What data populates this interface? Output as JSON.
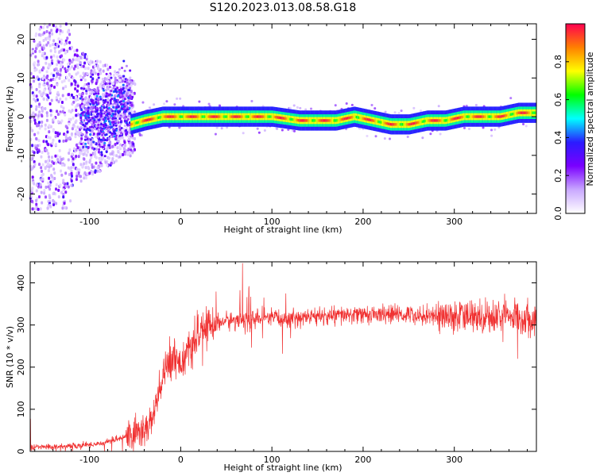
{
  "title": "S120.2023.013.08.58.G18",
  "chart_data": [
    {
      "type": "heatmap",
      "xlabel": "Height of straight line (km)",
      "ylabel": "Frequency (Hz)",
      "xlim": [
        -165,
        390
      ],
      "ylim": [
        -25,
        24
      ],
      "xticks": [
        -100,
        0,
        100,
        200,
        300
      ],
      "yticks": [
        -20,
        -10,
        0,
        10,
        20
      ],
      "colorbar": {
        "label": "Normalized spectral amplitude",
        "range": [
          0.0,
          1.0
        ],
        "ticks": [
          "0.0",
          "0.2",
          "0.4",
          "0.6",
          "0.8"
        ],
        "colors": [
          "#ffffff",
          "#c9a8ff",
          "#7a00ff",
          "#2b1bff",
          "#00ffff",
          "#00ff00",
          "#ffff00",
          "#ff8000",
          "#ff0050"
        ]
      },
      "ridge": {
        "x": [
          -55,
          -40,
          -20,
          0,
          20,
          50,
          80,
          100,
          130,
          150,
          170,
          190,
          210,
          230,
          250,
          270,
          290,
          310,
          330,
          350,
          370,
          390
        ],
        "y": [
          -2,
          -1,
          0,
          0,
          0,
          0,
          0,
          0,
          -1,
          -1,
          -1,
          0,
          -1,
          -2,
          -2,
          -1,
          -1,
          0,
          0,
          0,
          1,
          1
        ]
      }
    },
    {
      "type": "line",
      "xlabel": "Height of straight line (km)",
      "ylabel": "SNR (10 * v/v)",
      "xlim": [
        -165,
        390
      ],
      "ylim": [
        0,
        450
      ],
      "xticks": [
        -100,
        0,
        100,
        200,
        300
      ],
      "yticks": [
        0,
        100,
        200,
        300,
        400
      ],
      "color": "#f03030",
      "series_envelope": {
        "x": [
          -165,
          -120,
          -90,
          -60,
          -40,
          -30,
          -20,
          -10,
          0,
          10,
          20,
          30,
          50,
          80,
          100,
          150,
          200,
          250,
          300,
          350,
          390
        ],
        "y": [
          10,
          12,
          18,
          35,
          50,
          80,
          170,
          230,
          210,
          240,
          275,
          300,
          310,
          315,
          315,
          320,
          325,
          325,
          320,
          320,
          315
        ]
      }
    }
  ]
}
